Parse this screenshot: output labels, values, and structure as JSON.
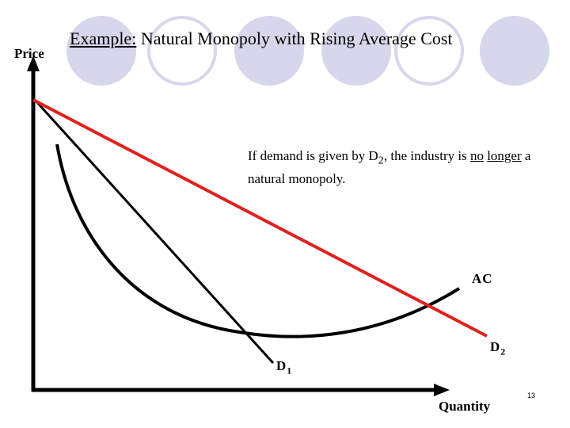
{
  "slide": {
    "title_prefix": "Example:",
    "title_rest": " Natural Monopoly with Rising Average Cost",
    "page_number": "13"
  },
  "axes": {
    "y_label": "Price",
    "x_label": "Quantity"
  },
  "note": {
    "part1": "If demand is given by D",
    "sub": "2",
    "part2": ", the industry is ",
    "u1": "no",
    "space": " ",
    "u2": "longer",
    "part3": " a natural monopoly."
  },
  "curves": {
    "ac": {
      "label": "AC",
      "color": "#000000"
    },
    "d1": {
      "label": "D",
      "sub": "1",
      "color": "#000000"
    },
    "d2": {
      "label": "D",
      "sub": "2",
      "color": "#e02020"
    }
  },
  "decor": {
    "circle_fill": "#d7d7ec",
    "circle_outline": "#d7d7ec"
  }
}
